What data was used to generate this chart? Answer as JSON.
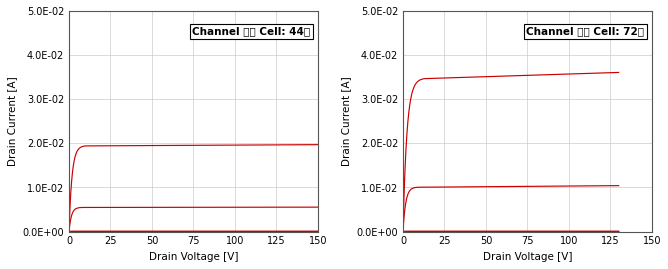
{
  "left_annotation": "Channel 형성 Cell: 44개",
  "right_annotation": "Channel 형성 Cell: 72개",
  "xlabel": "Drain Voltage [V]",
  "ylabel": "Drain Current [A]",
  "ylim": [
    0,
    0.05
  ],
  "xlim": [
    0,
    150
  ],
  "yticks": [
    0.0,
    0.01,
    0.02,
    0.03,
    0.04,
    0.05
  ],
  "ytick_labels": [
    "0.0E+00",
    "1.0E-02",
    "2.0E-02",
    "3.0E-02",
    "4.0E-02",
    "5.0E-02"
  ],
  "xticks": [
    0,
    25,
    50,
    75,
    100,
    125,
    150
  ],
  "line_color": "#cc0000",
  "background_color": "#ffffff",
  "grid_color": "#cccccc",
  "left_curves": [
    {
      "sat_current": 0.0195,
      "knee_v": 10,
      "slope": 2e-06
    },
    {
      "sat_current": 0.0055,
      "knee_v": 8,
      "slope": 5e-07
    },
    {
      "sat_current": 5e-05,
      "knee_v": 4,
      "slope": 0.0
    },
    {
      "sat_current": 5e-05,
      "knee_v": 4,
      "slope": 0.0
    },
    {
      "sat_current": 5e-05,
      "knee_v": 4,
      "slope": 0.0
    }
  ],
  "right_curves": [
    {
      "sat_current": 0.0348,
      "knee_v": 13,
      "slope": 1.2e-05
    },
    {
      "sat_current": 0.0101,
      "knee_v": 9,
      "slope": 3e-06
    },
    {
      "sat_current": 5e-05,
      "knee_v": 4,
      "slope": 0.0
    },
    {
      "sat_current": 5e-05,
      "knee_v": 4,
      "slope": 0.0
    },
    {
      "sat_current": 5e-05,
      "knee_v": 4,
      "slope": 0.0
    }
  ]
}
